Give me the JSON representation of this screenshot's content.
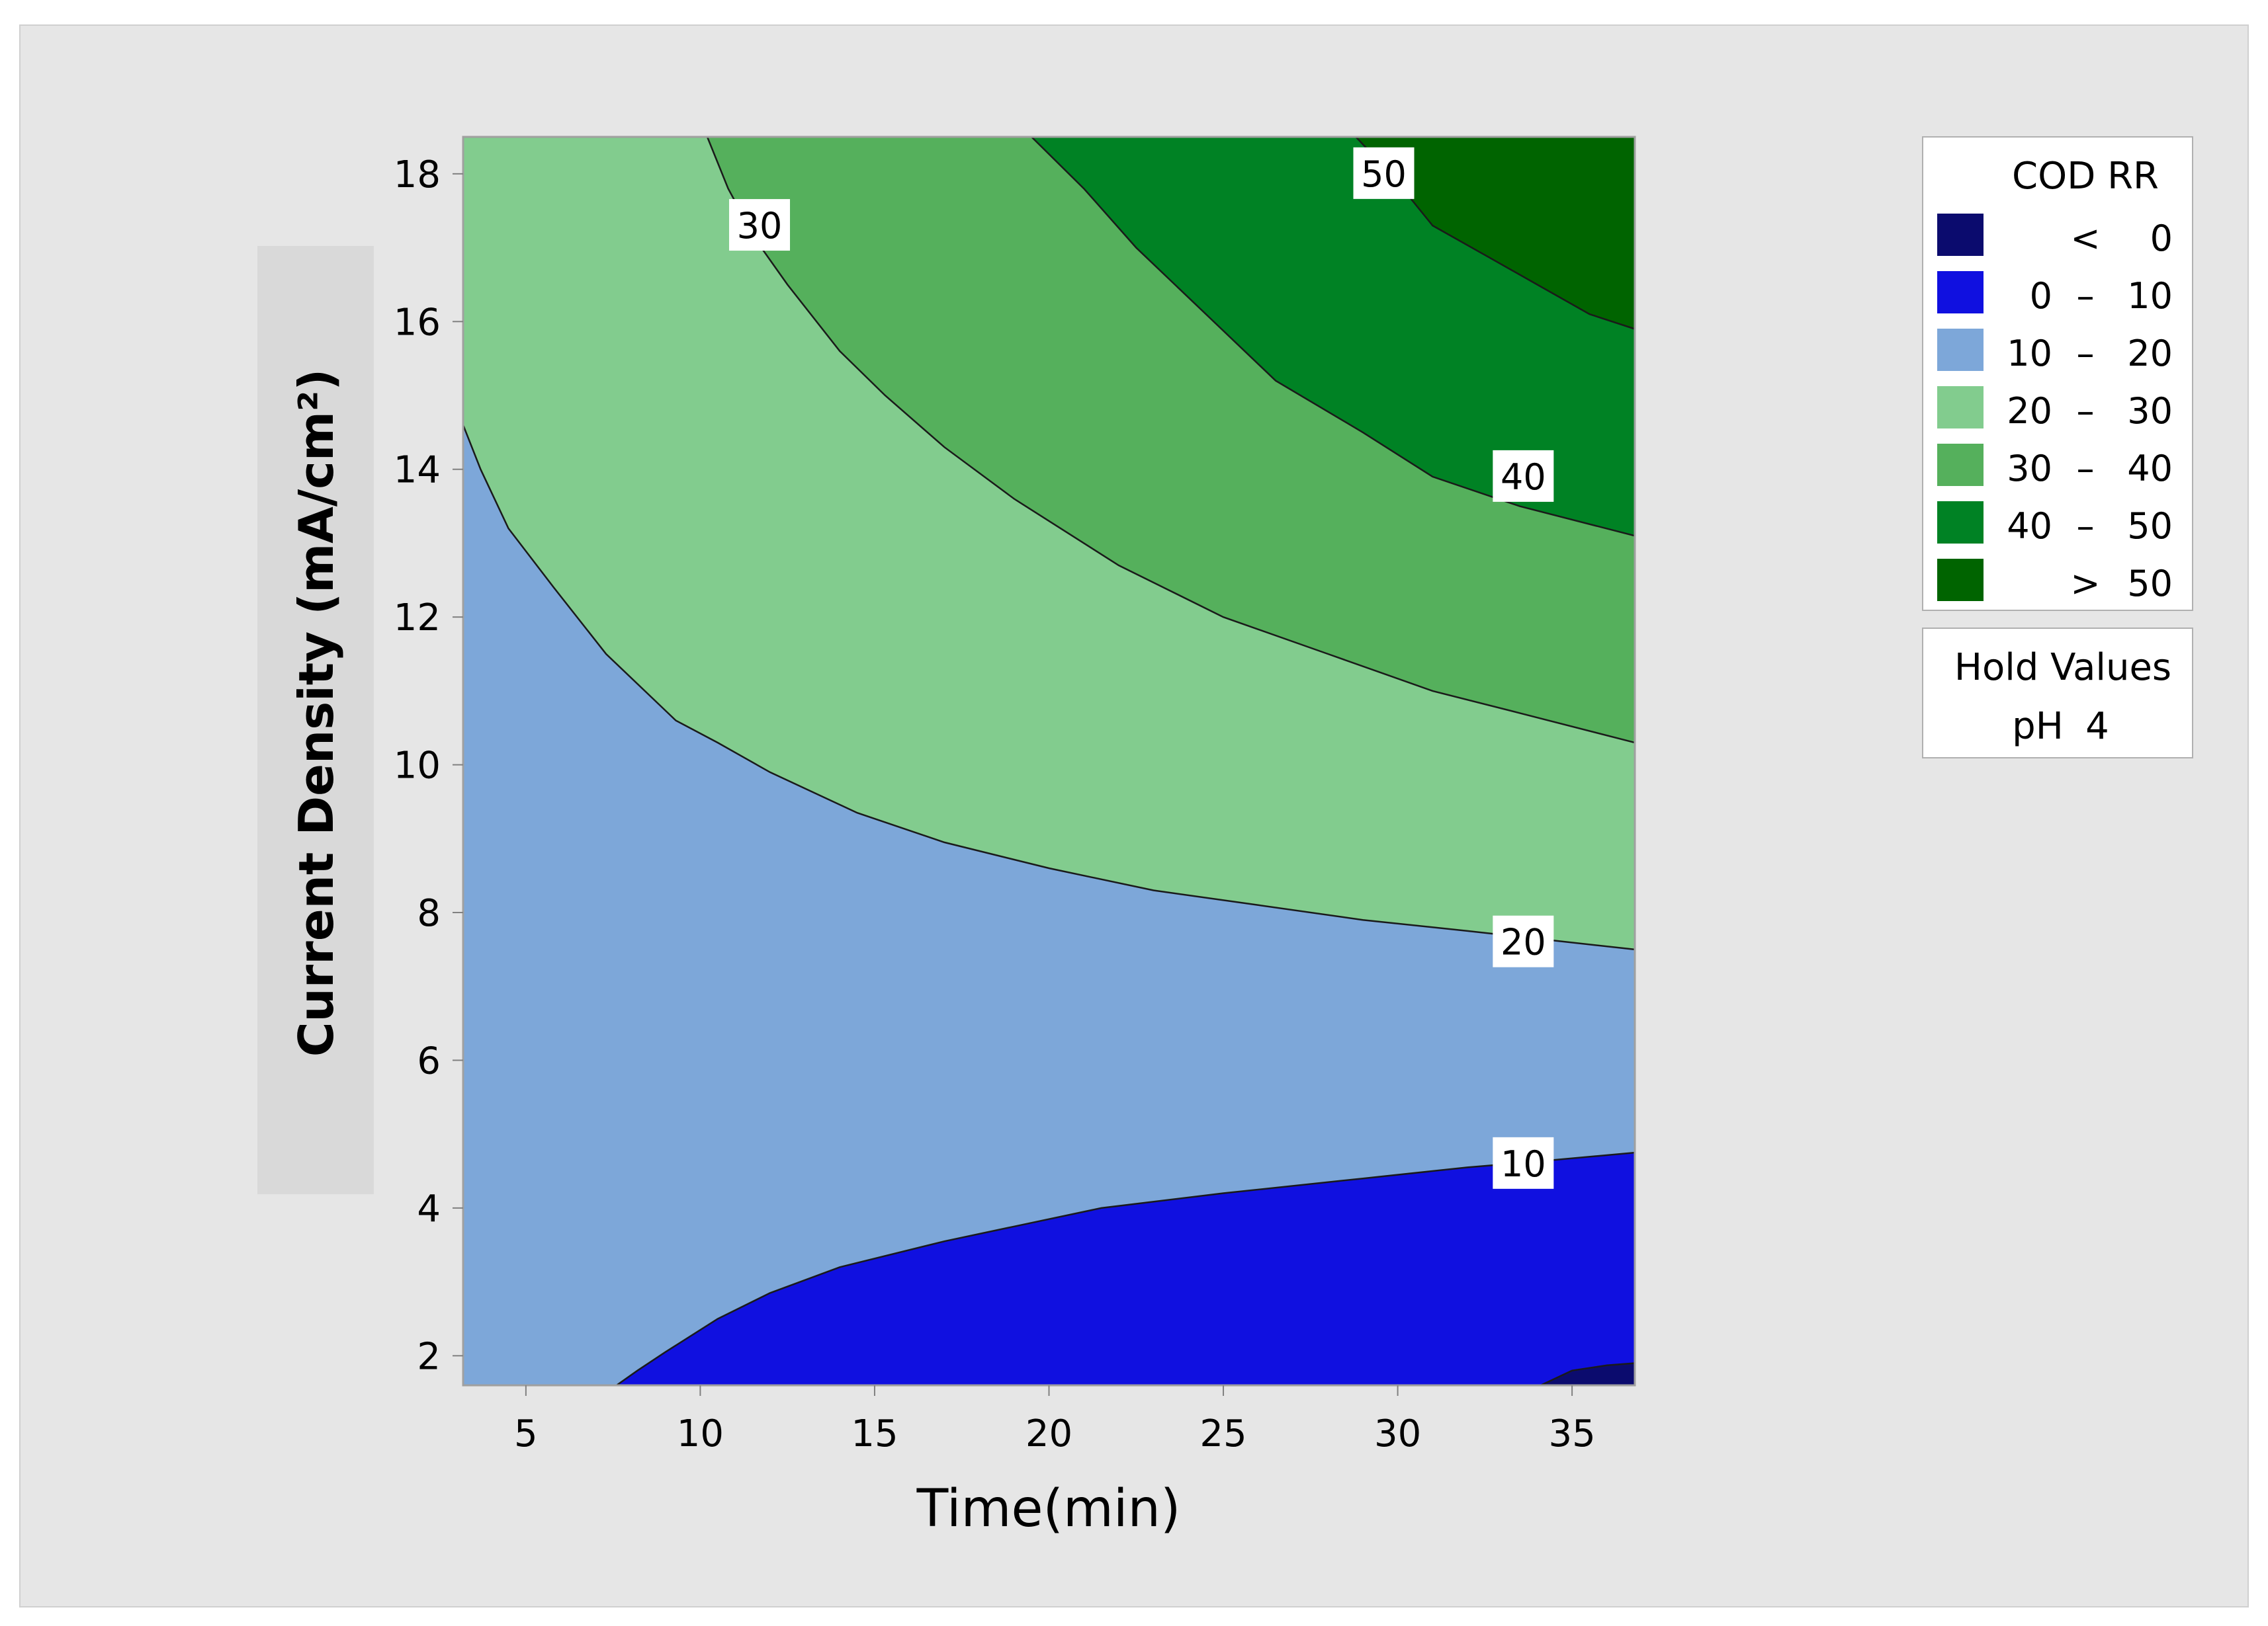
{
  "chart_data": {
    "type": "contour",
    "title": "",
    "xlabel": "Time(min)",
    "ylabel": "Current Density (mA/cm²)",
    "xlim": [
      3.2,
      36.8
    ],
    "ylim": [
      1.6,
      18.5
    ],
    "x_ticks": [
      5,
      10,
      15,
      20,
      25,
      30,
      35
    ],
    "y_ticks": [
      2,
      4,
      6,
      8,
      10,
      12,
      14,
      16,
      18
    ],
    "grid": false,
    "legend_position": "right",
    "legend": {
      "title": "COD RR",
      "entries": [
        {
          "op": "<",
          "lo": "",
          "hi": "0",
          "color": "#0b0b6e"
        },
        {
          "op": "–",
          "lo": "0",
          "hi": "10",
          "color": "#1010e0"
        },
        {
          "op": "–",
          "lo": "10",
          "hi": "20",
          "color": "#7da7d9"
        },
        {
          "op": "–",
          "lo": "20",
          "hi": "30",
          "color": "#82cc8e"
        },
        {
          "op": "–",
          "lo": "30",
          "hi": "40",
          "color": "#55b05c"
        },
        {
          "op": "–",
          "lo": "40",
          "hi": "50",
          "color": "#008224"
        },
        {
          "op": ">",
          "lo": "",
          "hi": "50",
          "color": "#006400"
        }
      ]
    },
    "hold_values": {
      "title": "Hold Values",
      "label": "pH",
      "value": "4"
    },
    "contours": [
      {
        "level": 0,
        "label": "",
        "points": [
          [
            34.1,
            1.6
          ],
          [
            35.0,
            1.8
          ],
          [
            36.0,
            1.87
          ],
          [
            36.8,
            1.9
          ]
        ]
      },
      {
        "level": 10,
        "label": "10",
        "label_at": [
          33.6,
          4.6
        ],
        "points": [
          [
            7.6,
            1.6
          ],
          [
            8.2,
            1.8
          ],
          [
            9.0,
            2.05
          ],
          [
            10.5,
            2.5
          ],
          [
            12.0,
            2.85
          ],
          [
            14.0,
            3.2
          ],
          [
            17.0,
            3.55
          ],
          [
            19.0,
            3.75
          ],
          [
            21.5,
            4.0
          ],
          [
            25.0,
            4.2
          ],
          [
            29.0,
            4.4
          ],
          [
            32.0,
            4.55
          ],
          [
            34.0,
            4.63
          ],
          [
            36.8,
            4.75
          ]
        ]
      },
      {
        "level": 20,
        "label": "20",
        "label_at": [
          33.6,
          7.6
        ],
        "points": [
          [
            3.2,
            14.6
          ],
          [
            3.7,
            14.0
          ],
          [
            4.5,
            13.2
          ],
          [
            5.8,
            12.4
          ],
          [
            7.3,
            11.5
          ],
          [
            9.3,
            10.6
          ],
          [
            10.5,
            10.3
          ],
          [
            12.0,
            9.9
          ],
          [
            14.5,
            9.35
          ],
          [
            17.0,
            8.95
          ],
          [
            20.0,
            8.6
          ],
          [
            23.0,
            8.3
          ],
          [
            26.0,
            8.1
          ],
          [
            29.0,
            7.9
          ],
          [
            32.0,
            7.75
          ],
          [
            34.5,
            7.62
          ],
          [
            36.8,
            7.5
          ]
        ]
      },
      {
        "level": 30,
        "label": "30",
        "label_at": [
          11.7,
          17.3
        ],
        "points": [
          [
            10.2,
            18.5
          ],
          [
            10.8,
            17.8
          ],
          [
            11.6,
            17.1
          ],
          [
            12.5,
            16.5
          ],
          [
            14.0,
            15.6
          ],
          [
            15.3,
            15.0
          ],
          [
            17.0,
            14.3
          ],
          [
            19.0,
            13.6
          ],
          [
            22.0,
            12.7
          ],
          [
            25.0,
            12.0
          ],
          [
            28.0,
            11.5
          ],
          [
            31.0,
            11.0
          ],
          [
            33.5,
            10.7
          ],
          [
            36.8,
            10.3
          ]
        ]
      },
      {
        "level": 40,
        "label": "40",
        "label_at": [
          33.6,
          13.9
        ],
        "points": [
          [
            19.5,
            18.5
          ],
          [
            21.0,
            17.8
          ],
          [
            22.5,
            17.0
          ],
          [
            24.5,
            16.1
          ],
          [
            26.5,
            15.2
          ],
          [
            29.0,
            14.5
          ],
          [
            31.0,
            13.9
          ],
          [
            33.5,
            13.5
          ],
          [
            36.8,
            13.1
          ]
        ]
      },
      {
        "level": 50,
        "label": "50",
        "label_at": [
          29.6,
          18.0
        ],
        "points": [
          [
            28.8,
            18.5
          ],
          [
            29.8,
            18.0
          ],
          [
            31.0,
            17.3
          ],
          [
            32.5,
            16.9
          ],
          [
            34.0,
            16.5
          ],
          [
            35.5,
            16.1
          ],
          [
            36.8,
            15.9
          ]
        ]
      }
    ]
  }
}
